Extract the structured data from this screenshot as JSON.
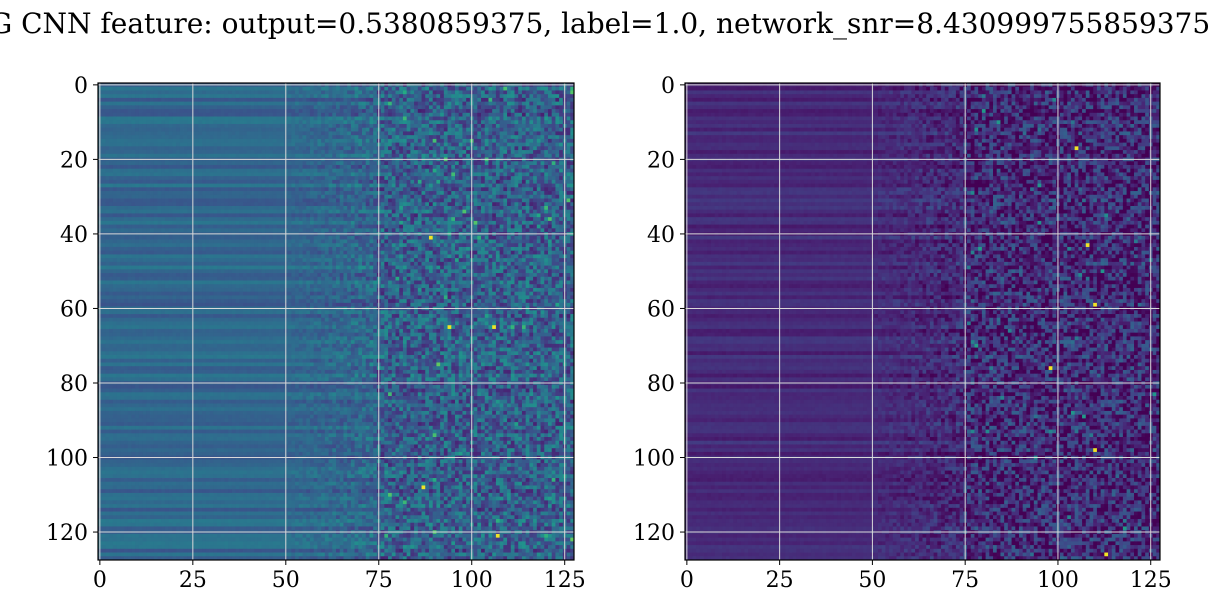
{
  "title": "G CNN feature: output=0.5380859375, label=1.0, network_snr=8.430999755859375",
  "colors": {
    "colormap": "viridis",
    "grid": "#d9d9d9",
    "spine": "#000000",
    "background": "#ffffff"
  },
  "chart_data": [
    {
      "type": "heatmap",
      "panel": "left",
      "grid": true,
      "xlim": [
        0,
        127
      ],
      "ylim": [
        127,
        0
      ],
      "xticks": [
        0,
        25,
        50,
        75,
        100,
        125
      ],
      "yticks": [
        0,
        20,
        40,
        60,
        80,
        100,
        120
      ],
      "xtick_labels": [
        "0",
        "25",
        "50",
        "75",
        "100",
        "125"
      ],
      "ytick_labels": [
        "0",
        "20",
        "40",
        "60",
        "80",
        "100",
        "120"
      ],
      "shape": [
        128,
        128
      ],
      "description_of_values": "Columns 0-50 show smooth horizontal banding (low-medium intensity, blue-teal); columns 50-75 transition; columns 75-127 noisy speckle with occasional bright yellow pixels.",
      "bright_pixels": [
        [
          89,
          41
        ],
        [
          106,
          65
        ],
        [
          107,
          121
        ],
        [
          87,
          108
        ],
        [
          94,
          65
        ]
      ]
    },
    {
      "type": "heatmap",
      "panel": "right",
      "grid": true,
      "xlim": [
        0,
        127
      ],
      "ylim": [
        127,
        0
      ],
      "xticks": [
        0,
        25,
        50,
        75,
        100,
        125
      ],
      "yticks": [
        0,
        20,
        40,
        60,
        80,
        100,
        120
      ],
      "xtick_labels": [
        "0",
        "25",
        "50",
        "75",
        "100",
        "125"
      ],
      "ytick_labels": [
        "0",
        "20",
        "40",
        "60",
        "80",
        "100",
        "120"
      ],
      "shape": [
        128,
        128
      ],
      "description_of_values": "Mostly dark purple low intensity with faint banding on left; columns 75-127 noisy with scattered green and yellow pixels.",
      "bright_pixels": [
        [
          105,
          17
        ],
        [
          108,
          43
        ],
        [
          110,
          59
        ],
        [
          110,
          98
        ],
        [
          113,
          126
        ],
        [
          98,
          76
        ]
      ]
    }
  ]
}
